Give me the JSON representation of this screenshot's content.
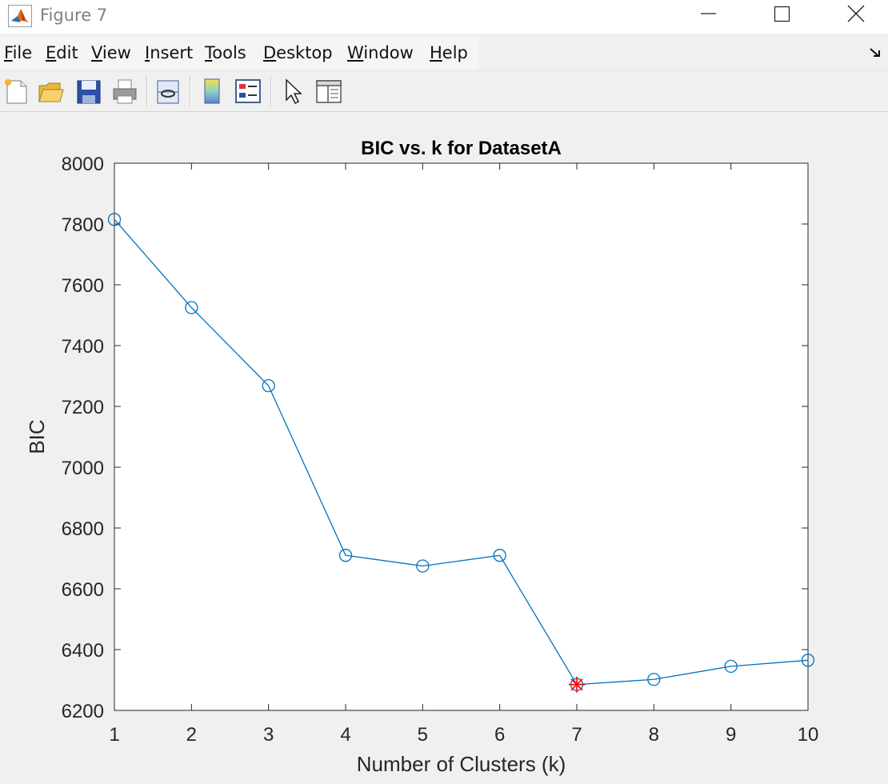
{
  "window": {
    "title": "Figure 7",
    "app_icon": "matlab-icon",
    "controls": [
      "minimize-icon",
      "maximize-icon",
      "close-icon"
    ]
  },
  "menubar": {
    "items": [
      {
        "label": "File",
        "mnemonic": "F",
        "rest": "ile"
      },
      {
        "label": "Edit",
        "mnemonic": "E",
        "rest": "dit"
      },
      {
        "label": "View",
        "mnemonic": "V",
        "rest": "iew"
      },
      {
        "label": "Insert",
        "mnemonic": "I",
        "rest": "nsert"
      },
      {
        "label": "Tools",
        "mnemonic": "T",
        "rest": "ools"
      },
      {
        "label": "Desktop",
        "mnemonic": "D",
        "rest": "esktop"
      },
      {
        "label": "Window",
        "mnemonic": "W",
        "rest": "indow"
      },
      {
        "label": "Help",
        "mnemonic": "H",
        "rest": "elp"
      }
    ]
  },
  "toolbar": {
    "buttons": [
      "new-figure-icon",
      "open-file-icon",
      "save-icon",
      "print-icon",
      "link-plot-icon",
      "colorbar-icon",
      "legend-icon",
      "edit-plot-pointer-icon",
      "property-inspector-icon"
    ]
  },
  "chart_data": {
    "type": "line",
    "title": "BIC vs. k for DatasetA",
    "xlabel": "Number of Clusters (k)",
    "ylabel": "BIC",
    "xlim": [
      1,
      10
    ],
    "ylim": [
      6200,
      8000
    ],
    "xticks": [
      1,
      2,
      3,
      4,
      5,
      6,
      7,
      8,
      9,
      10
    ],
    "yticks": [
      6200,
      6400,
      6600,
      6800,
      7000,
      7200,
      7400,
      7600,
      7800,
      8000
    ],
    "x": [
      1,
      2,
      3,
      4,
      5,
      6,
      7,
      8,
      9,
      10
    ],
    "series": [
      {
        "values": [
          7815,
          7525,
          7268,
          6710,
          6675,
          6710,
          6285,
          6302,
          6345,
          6365
        ],
        "color": "#0072BD",
        "marker": "circle"
      }
    ],
    "highlight": {
      "x": 7,
      "y": 6285,
      "color": "#ff0000",
      "marker": "star"
    },
    "grid": false,
    "colors": {
      "axes_bg": "#ffffff",
      "axes_edge": "#262626",
      "text": "#262626",
      "figure_bg": "#f0f0f0"
    }
  }
}
